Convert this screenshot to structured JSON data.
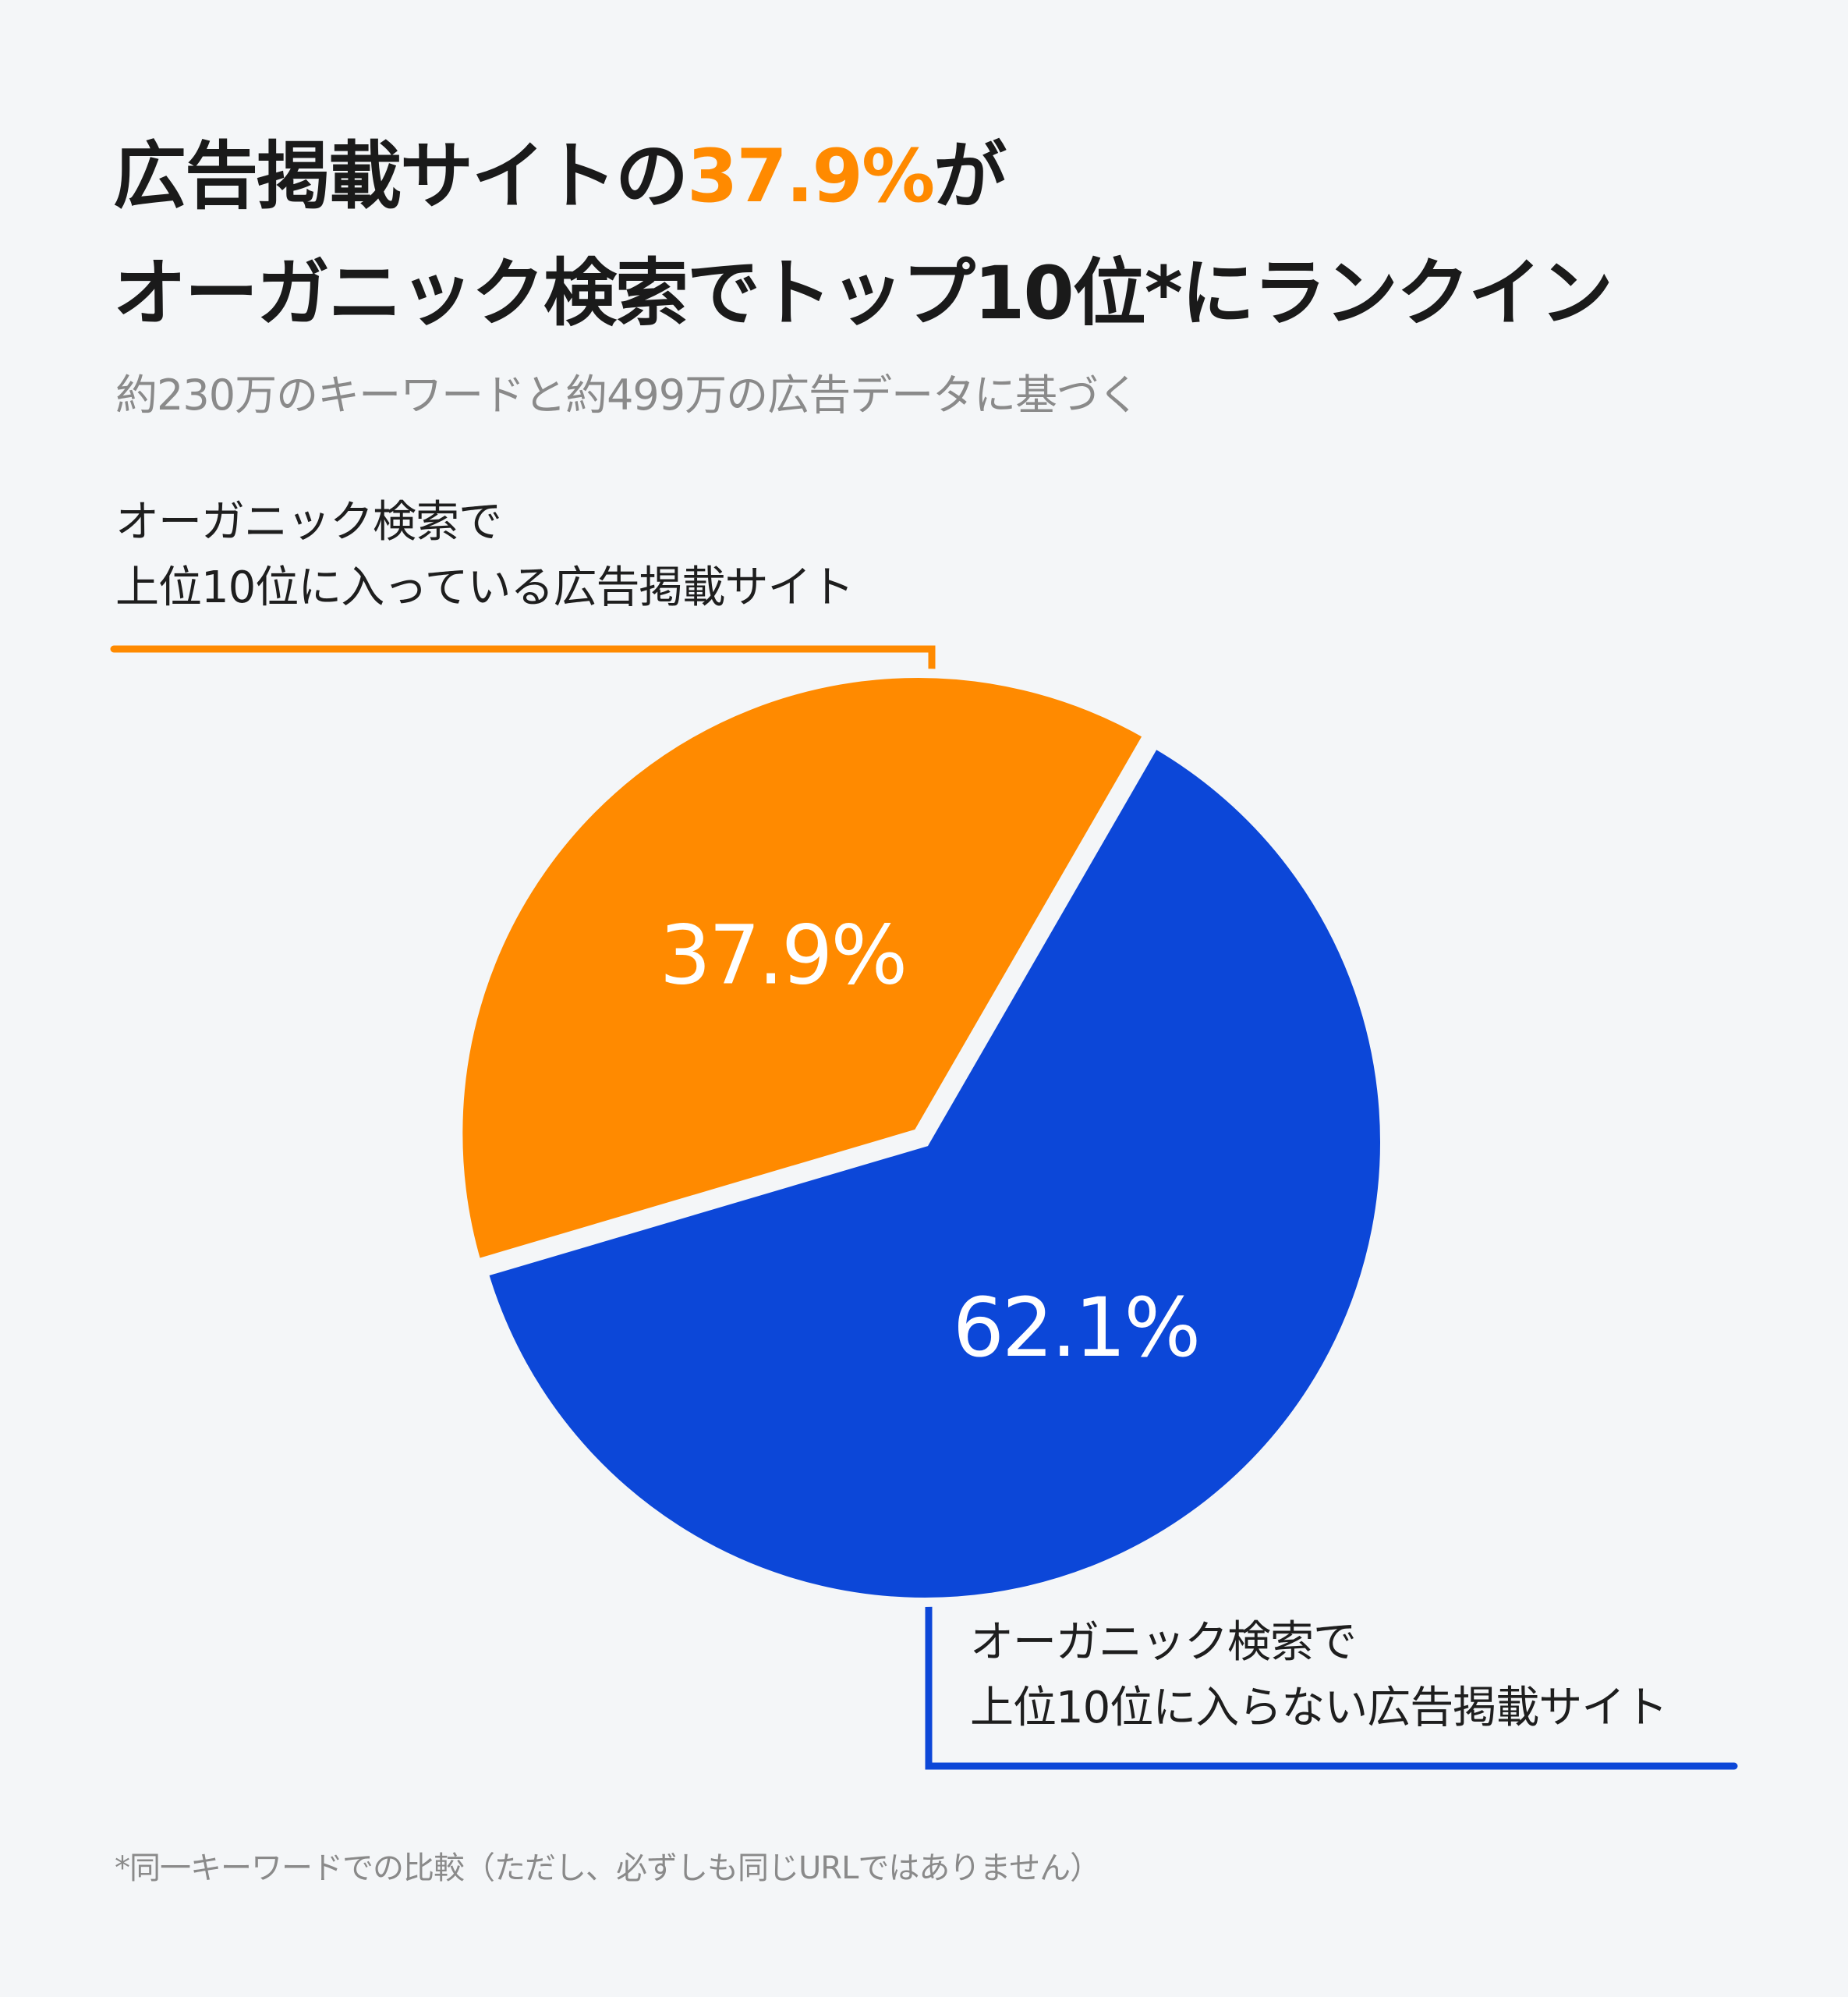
{
  "title": {
    "line1_prefix": "広告掲載サイトの",
    "line1_highlight": "37.9%",
    "line1_suffix": "が",
    "line2": "オーガニック検索でトップ10位*にランクイン"
  },
  "subtitle": "約230万のキーワードと約499万の広告データに基づく",
  "footnote": "*同一キーワードでの比較（ただし、必ずしも同じURLではありません）",
  "colors": {
    "background": "#f4f6f8",
    "orange": "#ff8a00",
    "blue": "#0c47d8",
    "highlight": "#ff8a00"
  },
  "chart_data": {
    "type": "pie",
    "slices": [
      {
        "label_line1": "オーガニック検索で",
        "label_line2": "上位10位に入っている広告掲載サイト",
        "value": 37.9,
        "value_label": "37.9%",
        "color": "#ff8a00"
      },
      {
        "label_line1": "オーガニック検索で",
        "label_line2": "上位10位に入らない広告掲載サイト",
        "value": 62.1,
        "value_label": "62.1%",
        "color": "#0c47d8"
      }
    ]
  }
}
